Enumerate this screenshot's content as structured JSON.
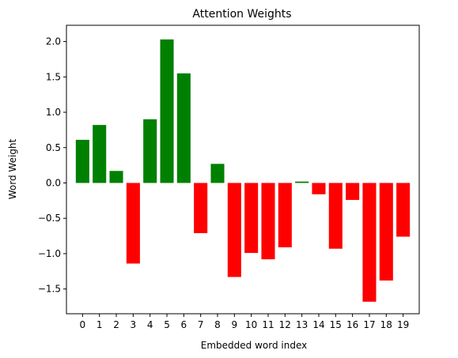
{
  "chart_data": {
    "type": "bar",
    "title": "Attention Weights",
    "xlabel": "Embedded word index",
    "ylabel": "Word Weight",
    "categories": [
      "0",
      "1",
      "2",
      "3",
      "4",
      "5",
      "6",
      "7",
      "8",
      "9",
      "10",
      "11",
      "12",
      "13",
      "14",
      "15",
      "16",
      "17",
      "18",
      "19"
    ],
    "values": [
      0.61,
      0.82,
      0.17,
      -1.14,
      0.9,
      2.03,
      1.55,
      -0.71,
      0.27,
      -1.33,
      -0.99,
      -1.08,
      -0.91,
      0.02,
      -0.16,
      -0.93,
      -0.24,
      -1.68,
      -1.38,
      -0.76
    ],
    "ylim": [
      -1.85,
      2.23
    ],
    "yticks": [
      -1.5,
      -1.0,
      -0.5,
      0.0,
      0.5,
      1.0,
      1.5,
      2.0
    ],
    "ytick_labels": [
      "−1.5",
      "−1.0",
      "−0.5",
      "0.0",
      "0.5",
      "1.0",
      "1.5",
      "2.0"
    ],
    "colors": {
      "positive": "#008000",
      "negative": "#ff0000",
      "axes": "#000000",
      "background": "#ffffff"
    },
    "grid": false,
    "legend": "none"
  }
}
